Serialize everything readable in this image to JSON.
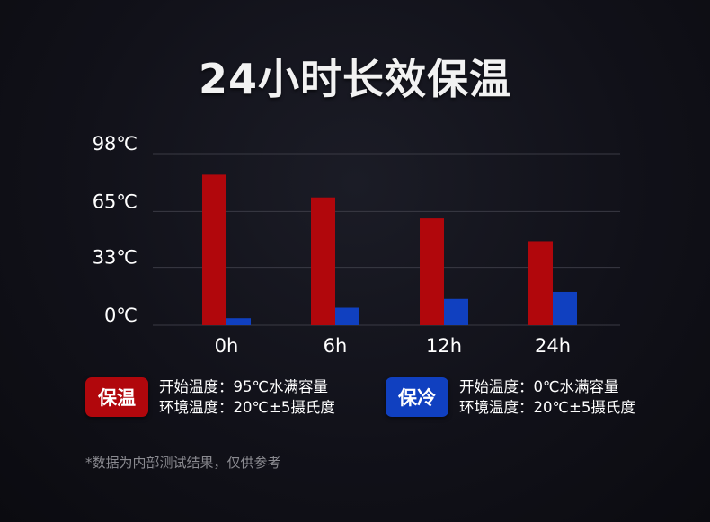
{
  "title": "24小时长效保温",
  "colors": {
    "warm": "#b1070c",
    "cold": "#1040c0",
    "grid": "#3a3a44"
  },
  "chart_data": {
    "type": "bar",
    "categories": [
      "0h",
      "6h",
      "12h",
      "24h"
    ],
    "series": [
      {
        "name": "保温",
        "values": [
          86,
          73,
          61,
          48
        ]
      },
      {
        "name": "保冷",
        "values": [
          4,
          10,
          15,
          19
        ]
      }
    ],
    "y_ticks": [
      {
        "value": 0,
        "label": "0℃"
      },
      {
        "value": 33,
        "label": "33℃"
      },
      {
        "value": 65,
        "label": "65℃"
      },
      {
        "value": 98,
        "label": "98℃"
      }
    ],
    "ylim": [
      0,
      98
    ],
    "grid": true
  },
  "legend": {
    "warm": {
      "badge": "保温",
      "line1": "开始温度：95℃水满容量",
      "line2": "环境温度：20℃±5摄氏度"
    },
    "cold": {
      "badge": "保冷",
      "line1": "开始温度：0℃水满容量",
      "line2": "环境温度：20℃±5摄氏度"
    }
  },
  "footnote": "*数据为内部测试结果，仅供参考"
}
